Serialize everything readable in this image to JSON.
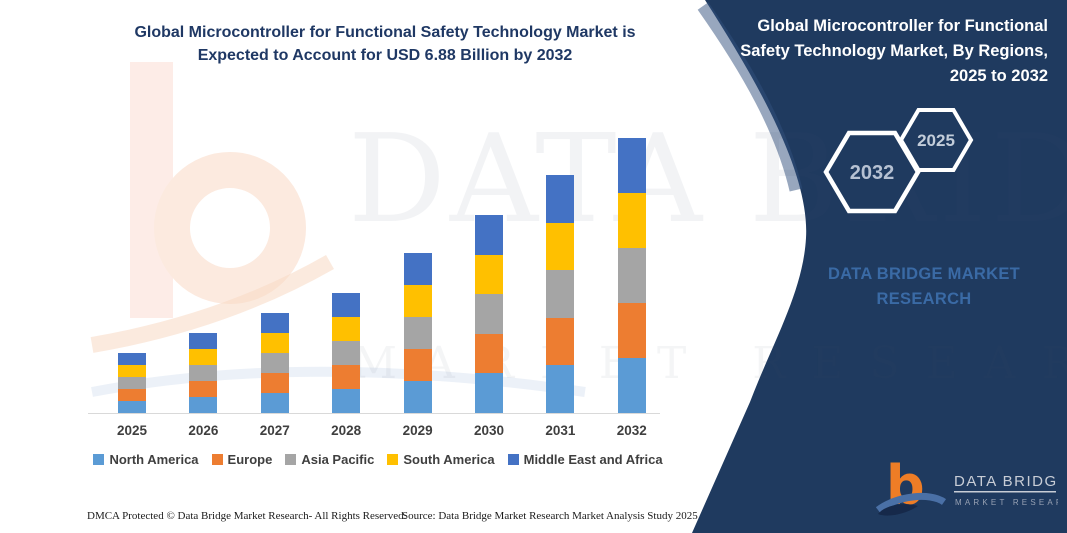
{
  "main_title": {
    "line1": "Global Microcontroller for Functional Safety Technology Market is",
    "line2": "Expected to Account for USD 6.88 Billion by 2032"
  },
  "panel": {
    "bg_color": "#1f3a5f",
    "title_lines": [
      "Global Microcontroller for Functional",
      "Safety Technology Market, By Regions,",
      "2025 to 2032"
    ],
    "hexagons": [
      {
        "label": "2032"
      },
      {
        "label": "2025"
      }
    ],
    "brand_lines": [
      "DATA BRIDGE MARKET",
      "RESEARCH"
    ],
    "logo": {
      "b_glyph": "b",
      "brand": "DATA BRIDGE",
      "sub": "MARKET RESEARCH"
    }
  },
  "watermark": {
    "line1": "DATA BRIDGE",
    "line2": "MARKET RESEARCH"
  },
  "footer": {
    "left": "DMCA Protected © Data Bridge Market Research-  All Rights Reserved.",
    "right": "Source: Data Bridge Market Research  Market Analysis Study 2025"
  },
  "chart_data": {
    "type": "bar",
    "stacked": true,
    "title": "Global Microcontroller for Functional Safety Technology Market is Expected to Account for USD 6.88 Billion by 2032",
    "categories": [
      "2025",
      "2026",
      "2027",
      "2028",
      "2029",
      "2030",
      "2031",
      "2032"
    ],
    "series": [
      {
        "name": "North America",
        "color": "#5b9bd5",
        "values": [
          0.3,
          0.4,
          0.5,
          0.6,
          0.8,
          0.99,
          1.19,
          1.376
        ]
      },
      {
        "name": "Europe",
        "color": "#ed7d31",
        "values": [
          0.3,
          0.4,
          0.5,
          0.6,
          0.8,
          0.99,
          1.19,
          1.376
        ]
      },
      {
        "name": "Asia Pacific",
        "color": "#a5a5a5",
        "values": [
          0.3,
          0.4,
          0.5,
          0.6,
          0.8,
          0.99,
          1.19,
          1.376
        ]
      },
      {
        "name": "South America",
        "color": "#ffc000",
        "values": [
          0.3,
          0.4,
          0.5,
          0.6,
          0.8,
          0.99,
          1.19,
          1.376
        ]
      },
      {
        "name": "Middle East and Africa",
        "color": "#4472c4",
        "values": [
          0.3,
          0.4,
          0.5,
          0.6,
          0.8,
          0.99,
          1.19,
          1.376
        ]
      }
    ],
    "totals_estimated": [
      1.5,
      2.0,
      2.5,
      3.0,
      4.0,
      4.95,
      5.95,
      6.88
    ],
    "unit": "USD Billion",
    "ylim": [
      0,
      7
    ],
    "xlabel": "",
    "ylabel": "",
    "gridlines": false,
    "legend_position": "bottom"
  }
}
